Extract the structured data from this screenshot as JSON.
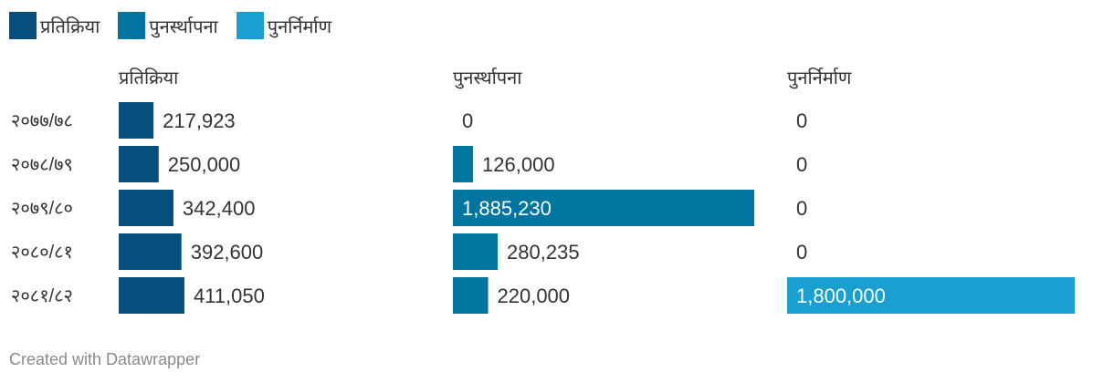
{
  "chart_data": {
    "type": "bar",
    "legend": {
      "position": "top-left",
      "items": [
        {
          "name": "प्रतिक्रिया",
          "color": "#064f7c"
        },
        {
          "name": "पुनर्स्थापना",
          "color": "#00759f"
        },
        {
          "name": "पुनर्निर्माण",
          "color": "#19a0d0"
        }
      ]
    },
    "categories": [
      "२०७७/७८",
      "२०७८/७९",
      "२०७९/८०",
      "२०८०/८१",
      "२०८१/८२"
    ],
    "series": [
      {
        "name": "प्रतिक्रिया",
        "color": "#064f7c",
        "values": [
          217923,
          250000,
          342400,
          392600,
          411050
        ],
        "labels": [
          "217,923",
          "250,000",
          "342,400",
          "392,600",
          "411,050"
        ]
      },
      {
        "name": "पुनर्स्थापना",
        "color": "#00759f",
        "values": [
          0,
          126000,
          1885230,
          280235,
          220000
        ],
        "labels": [
          "0",
          "126,000",
          "1,885,230",
          "280,235",
          "220,000"
        ]
      },
      {
        "name": "पुनर्निर्माण",
        "color": "#19a0d0",
        "values": [
          0,
          0,
          0,
          0,
          1800000
        ],
        "labels": [
          "0",
          "0",
          "0",
          "0",
          "1,800,000"
        ]
      }
    ],
    "xlim": [
      0,
      1885230
    ]
  },
  "footer": "Created with Datawrapper"
}
